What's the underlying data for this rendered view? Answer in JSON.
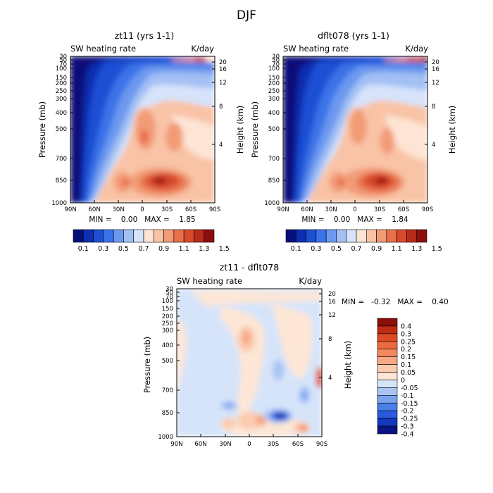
{
  "page_title": "DJF",
  "colors": {
    "cbar_main": [
      "#07107a",
      "#0d2fb0",
      "#1c4fd4",
      "#3b73e8",
      "#6c98ef",
      "#a3c0f4",
      "#d6e3fa",
      "#fde4d4",
      "#f9c3a6",
      "#f29b77",
      "#e8704b",
      "#d64a2c",
      "#b82a1a",
      "#8c0d0d"
    ],
    "cbar_diff": [
      "#0a1484",
      "#1438c2",
      "#2a5ae0",
      "#4a7ee8",
      "#7aa2ef",
      "#a9c4f4",
      "#d6e4fa",
      "#fde6d6",
      "#fbcbb0",
      "#f7a987",
      "#f38860",
      "#ec6a40",
      "#de4a24",
      "#bf2a12",
      "#8a0e0a"
    ]
  },
  "chart_data": [
    {
      "type": "heatmap",
      "title": "zt11 (yrs 1-1)",
      "subtitle_left": "SW heating rate",
      "subtitle_right": "K/day",
      "ylabel": "Pressure (mb)",
      "ylabel2": "Height (km)",
      "x_ticks": [
        "90N",
        "60N",
        "30N",
        "0",
        "30S",
        "60S",
        "90S"
      ],
      "x_range": [
        90,
        -90
      ],
      "y_ticks": [
        "30",
        "50",
        "70",
        "100",
        "150",
        "200",
        "250",
        "300",
        "400",
        "500",
        "700",
        "850",
        "1000"
      ],
      "y_ticks2": [
        "20",
        "16",
        "12",
        "8",
        "4"
      ],
      "ylim": [
        1000,
        30
      ],
      "stats": "MIN =    0.00   MAX =    1.85",
      "min": 0.0,
      "max": 1.85,
      "colorbar_labels": [
        "0.1",
        "0.3",
        "0.5",
        "0.7",
        "0.9",
        "1.1",
        "1.3",
        "1.5"
      ],
      "features": [
        {
          "lat": -35,
          "p": 850,
          "value": 1.85
        },
        {
          "lat": -5,
          "p": 500,
          "value": 1.2
        },
        {
          "lat": -80,
          "p": 620,
          "value": 1.0
        },
        {
          "lat": 90,
          "p": 1000,
          "value": 0.0
        }
      ]
    },
    {
      "type": "heatmap",
      "title": "dflt078 (yrs 1-1)",
      "subtitle_left": "SW heating rate",
      "subtitle_right": "K/day",
      "ylabel": "Pressure (mb)",
      "ylabel2": "Height (km)",
      "x_ticks": [
        "90N",
        "60N",
        "30N",
        "0",
        "30S",
        "60S",
        "90S"
      ],
      "x_range": [
        90,
        -90
      ],
      "y_ticks": [
        "30",
        "50",
        "70",
        "100",
        "150",
        "200",
        "250",
        "300",
        "400",
        "500",
        "700",
        "850",
        "1000"
      ],
      "y_ticks2": [
        "20",
        "16",
        "12",
        "8",
        "4"
      ],
      "ylim": [
        1000,
        30
      ],
      "stats": "MIN =    0.00   MAX =    1.84",
      "min": 0.0,
      "max": 1.84,
      "colorbar_labels": [
        "0.1",
        "0.3",
        "0.5",
        "0.7",
        "0.9",
        "1.1",
        "1.3",
        "1.5"
      ],
      "features": [
        {
          "lat": -35,
          "p": 850,
          "value": 1.84
        },
        {
          "lat": -5,
          "p": 500,
          "value": 1.15
        },
        {
          "lat": -80,
          "p": 620,
          "value": 0.95
        },
        {
          "lat": 90,
          "p": 1000,
          "value": 0.0
        }
      ]
    },
    {
      "type": "heatmap",
      "title": "zt11 - dflt078",
      "subtitle_left": "SW heating rate",
      "subtitle_right": "K/day",
      "ylabel": "Pressure (mb)",
      "ylabel2": "Height (km)",
      "x_ticks": [
        "90N",
        "60N",
        "30N",
        "0",
        "30S",
        "60S",
        "90S"
      ],
      "x_range": [
        90,
        -90
      ],
      "y_ticks": [
        "30",
        "50",
        "70",
        "100",
        "150",
        "200",
        "250",
        "300",
        "400",
        "500",
        "700",
        "850",
        "1000"
      ],
      "y_ticks2": [
        "20",
        "16",
        "12",
        "8",
        "4"
      ],
      "ylim": [
        1000,
        30
      ],
      "stats": "MIN =   -0.32   MAX =    0.40",
      "min": -0.32,
      "max": 0.4,
      "colorbar_labels": [
        "0.4",
        "0.3",
        "0.25",
        "0.2",
        "0.15",
        "0.1",
        "0.05",
        "0",
        "-0.05",
        "-0.1",
        "-0.15",
        "-0.2",
        "-0.25",
        "-0.3",
        "-0.4"
      ],
      "features": [
        {
          "lat": -45,
          "p": 870,
          "value": -0.32
        },
        {
          "lat": -90,
          "p": 560,
          "value": 0.4
        },
        {
          "lat": 5,
          "p": 380,
          "value": 0.2
        },
        {
          "lat": 10,
          "p": 870,
          "value": 0.2
        }
      ]
    }
  ]
}
